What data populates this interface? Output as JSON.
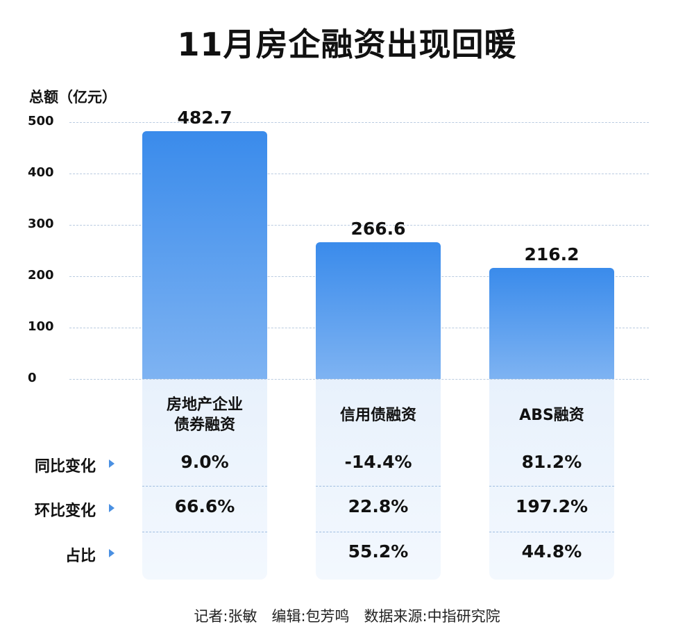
{
  "chart_data": {
    "type": "bar",
    "title": "11月房企融资出现回暖",
    "ylabel": "总额（亿元）",
    "ylim": [
      0,
      500
    ],
    "yticks": [
      0,
      100,
      200,
      300,
      400,
      500
    ],
    "grid": true,
    "categories": [
      "房地产企业债券融资",
      "信用债融资",
      "ABS融资"
    ],
    "category_lines": [
      [
        "房地产企业",
        "债券融资"
      ],
      [
        "信用债融资"
      ],
      [
        "ABS融资"
      ]
    ],
    "values": [
      482.7,
      266.6,
      216.2
    ],
    "value_labels": [
      "482.7",
      "266.6",
      "216.2"
    ],
    "table": {
      "rows": [
        {
          "label": "同比变化",
          "values": [
            "9.0%",
            "-14.4%",
            "81.2%"
          ]
        },
        {
          "label": "环比变化",
          "values": [
            "66.6%",
            "22.8%",
            "197.2%"
          ]
        },
        {
          "label": "占比",
          "values": [
            "",
            "55.2%",
            "44.8%"
          ]
        }
      ]
    },
    "colors": {
      "bar_top": "#3a8beb",
      "bar_bottom": "#7eb3f2",
      "panel": "#eaf2fc",
      "accent": "#4a90e2"
    }
  },
  "footer": "记者:张敏　编辑:包芳鸣　数据来源:中指研究院"
}
